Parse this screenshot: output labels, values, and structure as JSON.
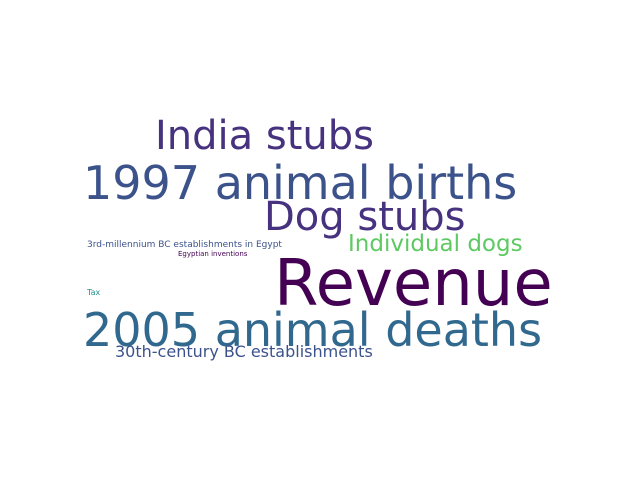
{
  "words": [
    {
      "text": "India stubs",
      "color": "#46327e"
    },
    {
      "text": "1997 animal births",
      "color": "#3b528b"
    },
    {
      "text": "Dog stubs",
      "color": "#46327e"
    },
    {
      "text": "3rd-millennium BC establishments in Egypt",
      "color": "#3b528b"
    },
    {
      "text": "Individual dogs",
      "color": "#5ec962"
    },
    {
      "text": "Egyptian inventions",
      "color": "#440154"
    },
    {
      "text": "Revenue",
      "color": "#440154"
    },
    {
      "text": "Tax",
      "color": "#21918c"
    },
    {
      "text": "2005 animal deaths",
      "color": "#31688e"
    },
    {
      "text": "30th-century BC establishments",
      "color": "#3b528b"
    }
  ]
}
